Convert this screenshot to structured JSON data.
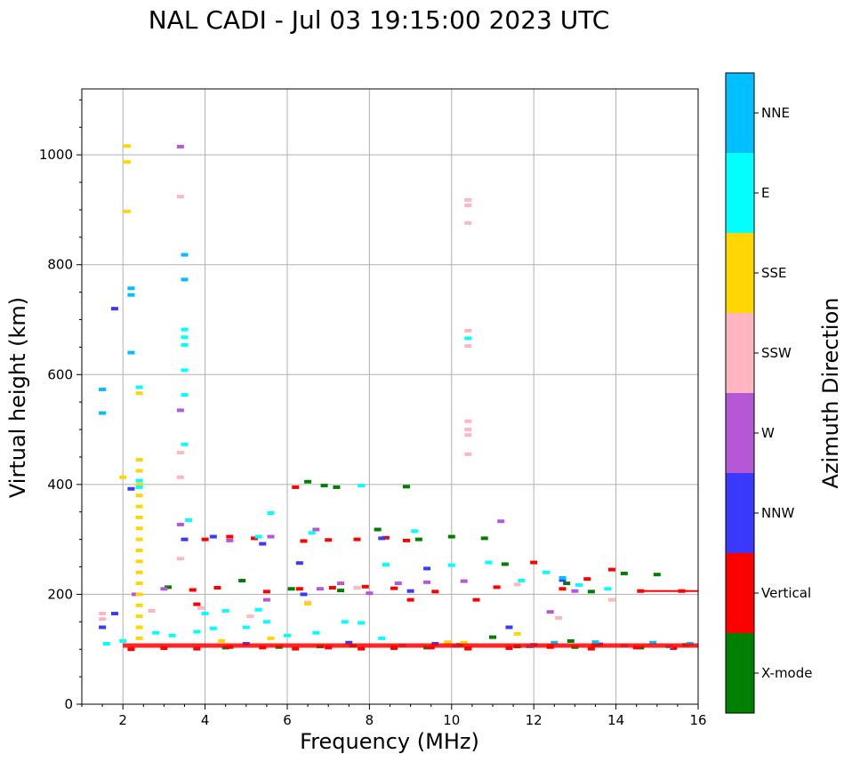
{
  "chart_data": {
    "type": "scatter",
    "title": "NAL CADI - Jul 03 19:15:00 2023 UTC",
    "xlabel": "Frequency (MHz)",
    "ylabel": "Virtual height (km)",
    "xlim": [
      1,
      16
    ],
    "ylim": [
      0,
      1120
    ],
    "xticks": [
      2,
      4,
      6,
      8,
      10,
      12,
      14,
      16
    ],
    "yticks": [
      0,
      200,
      400,
      600,
      800,
      1000
    ],
    "grid": true,
    "colorbar": {
      "label": "Azimuth Direction",
      "categories": [
        {
          "name": "X-mode",
          "color": "#008000"
        },
        {
          "name": "Vertical",
          "color": "#ff0000"
        },
        {
          "name": "NNW",
          "color": "#3a3aff"
        },
        {
          "name": "W",
          "color": "#b558d6"
        },
        {
          "name": "SSW",
          "color": "#ffb6c1"
        },
        {
          "name": "SSE",
          "color": "#ffd700"
        },
        {
          "name": "E",
          "color": "#00ffff"
        },
        {
          "name": "NNE",
          "color": "#00bfff"
        }
      ]
    },
    "series": [
      {
        "name": "X-mode",
        "points": [
          [
            6.5,
            405
          ],
          [
            6.9,
            398
          ],
          [
            7.2,
            395
          ],
          [
            8.9,
            396
          ],
          [
            10.0,
            305
          ],
          [
            10.8,
            302
          ],
          [
            11.3,
            255
          ],
          [
            12.8,
            220
          ],
          [
            13.4,
            205
          ],
          [
            14.2,
            238
          ],
          [
            15.0,
            236
          ],
          [
            4.5,
            103
          ],
          [
            5.8,
            104
          ],
          [
            6.8,
            105
          ],
          [
            7.6,
            106
          ],
          [
            8.6,
            104
          ],
          [
            9.4,
            103
          ],
          [
            10.4,
            102
          ],
          [
            11.6,
            105
          ],
          [
            12.4,
            106
          ],
          [
            13.0,
            104
          ],
          [
            14.6,
            103
          ],
          [
            15.7,
            108
          ],
          [
            3.1,
            213
          ],
          [
            4.9,
            225
          ],
          [
            6.1,
            210
          ],
          [
            7.3,
            207
          ],
          [
            8.2,
            318
          ],
          [
            9.2,
            300
          ],
          [
            11.0,
            122
          ],
          [
            10.2,
            108
          ],
          [
            12.9,
            115
          ],
          [
            13.5,
            108
          ]
        ]
      },
      {
        "name": "Vertical",
        "points": [
          [
            6.2,
            395
          ],
          [
            4.0,
            300
          ],
          [
            4.6,
            305
          ],
          [
            5.2,
            302
          ],
          [
            6.4,
            297
          ],
          [
            7.0,
            299
          ],
          [
            7.7,
            300
          ],
          [
            8.4,
            303
          ],
          [
            8.9,
            298
          ],
          [
            3.7,
            208
          ],
          [
            4.3,
            212
          ],
          [
            5.5,
            205
          ],
          [
            6.3,
            210
          ],
          [
            7.1,
            212
          ],
          [
            7.9,
            214
          ],
          [
            8.6,
            211
          ],
          [
            9.6,
            205
          ],
          [
            11.1,
            213
          ],
          [
            12.0,
            258
          ],
          [
            12.7,
            210
          ],
          [
            13.3,
            228
          ],
          [
            13.9,
            245
          ],
          [
            14.6,
            206
          ],
          [
            15.6,
            206
          ],
          [
            2.2,
            100
          ],
          [
            3.0,
            102
          ],
          [
            3.8,
            101
          ],
          [
            4.6,
            104
          ],
          [
            5.4,
            103
          ],
          [
            6.2,
            101
          ],
          [
            7.0,
            103
          ],
          [
            7.8,
            101
          ],
          [
            8.6,
            102
          ],
          [
            9.5,
            103
          ],
          [
            10.4,
            101
          ],
          [
            11.4,
            102
          ],
          [
            12.4,
            104
          ],
          [
            13.4,
            101
          ],
          [
            14.5,
            103
          ],
          [
            15.4,
            102
          ],
          [
            3.8,
            182
          ],
          [
            9.0,
            190
          ],
          [
            10.6,
            190
          ]
        ]
      },
      {
        "name": "NNW",
        "points": [
          [
            2.2,
            392
          ],
          [
            1.8,
            720
          ],
          [
            3.5,
            300
          ],
          [
            4.2,
            305
          ],
          [
            5.4,
            292
          ],
          [
            6.3,
            257
          ],
          [
            8.3,
            302
          ],
          [
            9.4,
            247
          ],
          [
            12.7,
            226
          ],
          [
            11.4,
            140
          ],
          [
            12.0,
            108
          ],
          [
            5.0,
            110
          ],
          [
            7.5,
            112
          ],
          [
            9.6,
            110
          ],
          [
            1.8,
            165
          ],
          [
            1.5,
            140
          ],
          [
            6.4,
            200
          ],
          [
            9.0,
            206
          ],
          [
            13.6,
            109
          ]
        ]
      },
      {
        "name": "W",
        "points": [
          [
            3.4,
            1015
          ],
          [
            2.3,
            200
          ],
          [
            3.0,
            210
          ],
          [
            3.4,
            327
          ],
          [
            4.6,
            298
          ],
          [
            5.6,
            305
          ],
          [
            6.7,
            318
          ],
          [
            7.3,
            220
          ],
          [
            8.0,
            202
          ],
          [
            9.4,
            222
          ],
          [
            11.2,
            333
          ],
          [
            12.4,
            168
          ],
          [
            13.0,
            206
          ],
          [
            3.4,
            535
          ],
          [
            5.5,
            190
          ],
          [
            6.8,
            210
          ],
          [
            8.7,
            220
          ],
          [
            10.3,
            224
          ]
        ]
      },
      {
        "name": "SSW",
        "points": [
          [
            10.4,
            918
          ],
          [
            10.4,
            908
          ],
          [
            10.4,
            876
          ],
          [
            10.4,
            680
          ],
          [
            10.4,
            652
          ],
          [
            10.4,
            515
          ],
          [
            10.4,
            500
          ],
          [
            10.4,
            490
          ],
          [
            10.4,
            455
          ],
          [
            3.4,
            924
          ],
          [
            3.4,
            458
          ],
          [
            3.4,
            413
          ],
          [
            3.4,
            265
          ],
          [
            1.5,
            165
          ],
          [
            1.5,
            155
          ],
          [
            2.7,
            170
          ],
          [
            3.9,
            175
          ],
          [
            5.1,
            160
          ],
          [
            6.5,
            185
          ],
          [
            7.7,
            212
          ],
          [
            11.6,
            218
          ],
          [
            12.6,
            157
          ],
          [
            13.9,
            190
          ]
        ]
      },
      {
        "name": "SSE",
        "points": [
          [
            2.1,
            1016
          ],
          [
            2.1,
            987
          ],
          [
            2.1,
            897
          ],
          [
            2.4,
            566
          ],
          [
            2.0,
            413
          ],
          [
            2.4,
            445
          ],
          [
            2.4,
            425
          ],
          [
            2.4,
            400
          ],
          [
            2.4,
            380
          ],
          [
            2.4,
            360
          ],
          [
            2.4,
            340
          ],
          [
            2.4,
            320
          ],
          [
            2.4,
            300
          ],
          [
            2.4,
            280
          ],
          [
            2.4,
            260
          ],
          [
            2.4,
            240
          ],
          [
            2.4,
            220
          ],
          [
            2.4,
            200
          ],
          [
            2.4,
            180
          ],
          [
            2.4,
            160
          ],
          [
            2.4,
            140
          ],
          [
            2.4,
            120
          ],
          [
            6.5,
            183
          ],
          [
            9.9,
            113
          ],
          [
            10.3,
            112
          ],
          [
            11.6,
            128
          ],
          [
            4.4,
            115
          ],
          [
            5.6,
            120
          ]
        ]
      },
      {
        "name": "E",
        "points": [
          [
            2.4,
            407
          ],
          [
            2.4,
            395
          ],
          [
            2.4,
            577
          ],
          [
            3.5,
            682
          ],
          [
            3.5,
            668
          ],
          [
            3.5,
            654
          ],
          [
            3.5,
            608
          ],
          [
            3.5,
            563
          ],
          [
            3.5,
            473
          ],
          [
            3.6,
            335
          ],
          [
            5.3,
            305
          ],
          [
            5.6,
            348
          ],
          [
            6.6,
            312
          ],
          [
            7.8,
            398
          ],
          [
            8.4,
            254
          ],
          [
            9.1,
            315
          ],
          [
            10.0,
            253
          ],
          [
            10.4,
            666
          ],
          [
            10.9,
            258
          ],
          [
            11.7,
            225
          ],
          [
            12.3,
            240
          ],
          [
            13.1,
            217
          ],
          [
            13.8,
            210
          ],
          [
            4.0,
            165
          ],
          [
            4.5,
            170
          ],
          [
            5.0,
            140
          ],
          [
            5.5,
            150
          ],
          [
            6.0,
            125
          ],
          [
            6.7,
            130
          ],
          [
            7.4,
            150
          ],
          [
            7.8,
            148
          ],
          [
            8.3,
            120
          ],
          [
            3.8,
            132
          ],
          [
            4.2,
            138
          ],
          [
            5.3,
            172
          ],
          [
            3.2,
            125
          ],
          [
            2.8,
            130
          ],
          [
            1.6,
            110
          ],
          [
            2.0,
            115
          ]
        ]
      },
      {
        "name": "NNE",
        "points": [
          [
            1.5,
            573
          ],
          [
            1.5,
            530
          ],
          [
            2.2,
            757
          ],
          [
            2.2,
            745
          ],
          [
            2.2,
            640
          ],
          [
            3.5,
            818
          ],
          [
            3.5,
            773
          ],
          [
            12.7,
            230
          ],
          [
            13.5,
            113
          ],
          [
            12.5,
            112
          ],
          [
            15.3,
            105
          ],
          [
            15.8,
            110
          ],
          [
            14.9,
            112
          ],
          [
            14.2,
            107
          ],
          [
            11.9,
            105
          ],
          [
            10.1,
            106
          ],
          [
            8.8,
            107
          ]
        ]
      }
    ]
  }
}
